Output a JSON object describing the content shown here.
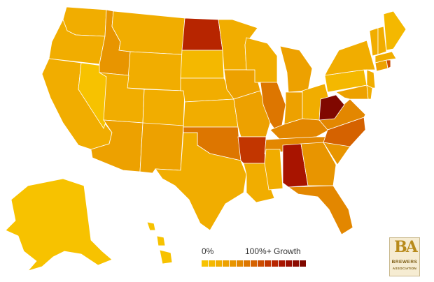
{
  "legend": {
    "min_label": "0%",
    "max_label": "100%+ Growth",
    "scale_colors": [
      "#f7c200",
      "#f4b800",
      "#f1ad00",
      "#eda100",
      "#e89500",
      "#e38700",
      "#dd7600",
      "#d56200",
      "#cc4c00",
      "#c23600",
      "#b72500",
      "#a81400",
      "#9a0d00",
      "#8c0a00",
      "#800800"
    ]
  },
  "logo": {
    "mark": "BA",
    "line1": "BREWERS",
    "line2": "ASSOCIATION"
  },
  "map_data": {
    "metric": "growth",
    "states": {
      "AK": {
        "level": 0
      },
      "HI": {
        "level": 0
      },
      "WA": {
        "level": 2
      },
      "OR": {
        "level": 2
      },
      "CA": {
        "level": 2
      },
      "NV": {
        "level": 0
      },
      "ID": {
        "level": 4
      },
      "MT": {
        "level": 2
      },
      "WY": {
        "level": 2
      },
      "UT": {
        "level": 2
      },
      "AZ": {
        "level": 3
      },
      "CO": {
        "level": 2
      },
      "NM": {
        "level": 3
      },
      "ND": {
        "level": 10
      },
      "SD": {
        "level": 1
      },
      "NE": {
        "level": 2
      },
      "KS": {
        "level": 2
      },
      "OK": {
        "level": 6
      },
      "TX": {
        "level": 2
      },
      "MN": {
        "level": 2
      },
      "IA": {
        "level": 3
      },
      "MO": {
        "level": 3
      },
      "AR": {
        "level": 9
      },
      "LA": {
        "level": 2
      },
      "WI": {
        "level": 2
      },
      "IL": {
        "level": 6
      },
      "MI": {
        "level": 3
      },
      "IN": {
        "level": 3
      },
      "OH": {
        "level": 2
      },
      "KY": {
        "level": 5
      },
      "TN": {
        "level": 5
      },
      "MS": {
        "level": 2
      },
      "AL": {
        "level": 11
      },
      "GA": {
        "level": 4
      },
      "FL": {
        "level": 5
      },
      "SC": {
        "level": 4
      },
      "NC": {
        "level": 7
      },
      "VA": {
        "level": 5
      },
      "WV": {
        "level": 14
      },
      "PA": {
        "level": 1
      },
      "NY": {
        "level": 2
      },
      "ME": {
        "level": 1
      },
      "VT": {
        "level": 2
      },
      "NH": {
        "level": 2
      },
      "MA": {
        "level": 2
      },
      "RI": {
        "level": 8
      },
      "CT": {
        "level": 3
      },
      "NJ": {
        "level": 2
      },
      "DE": {
        "level": 2
      },
      "MD": {
        "level": 3
      }
    }
  }
}
